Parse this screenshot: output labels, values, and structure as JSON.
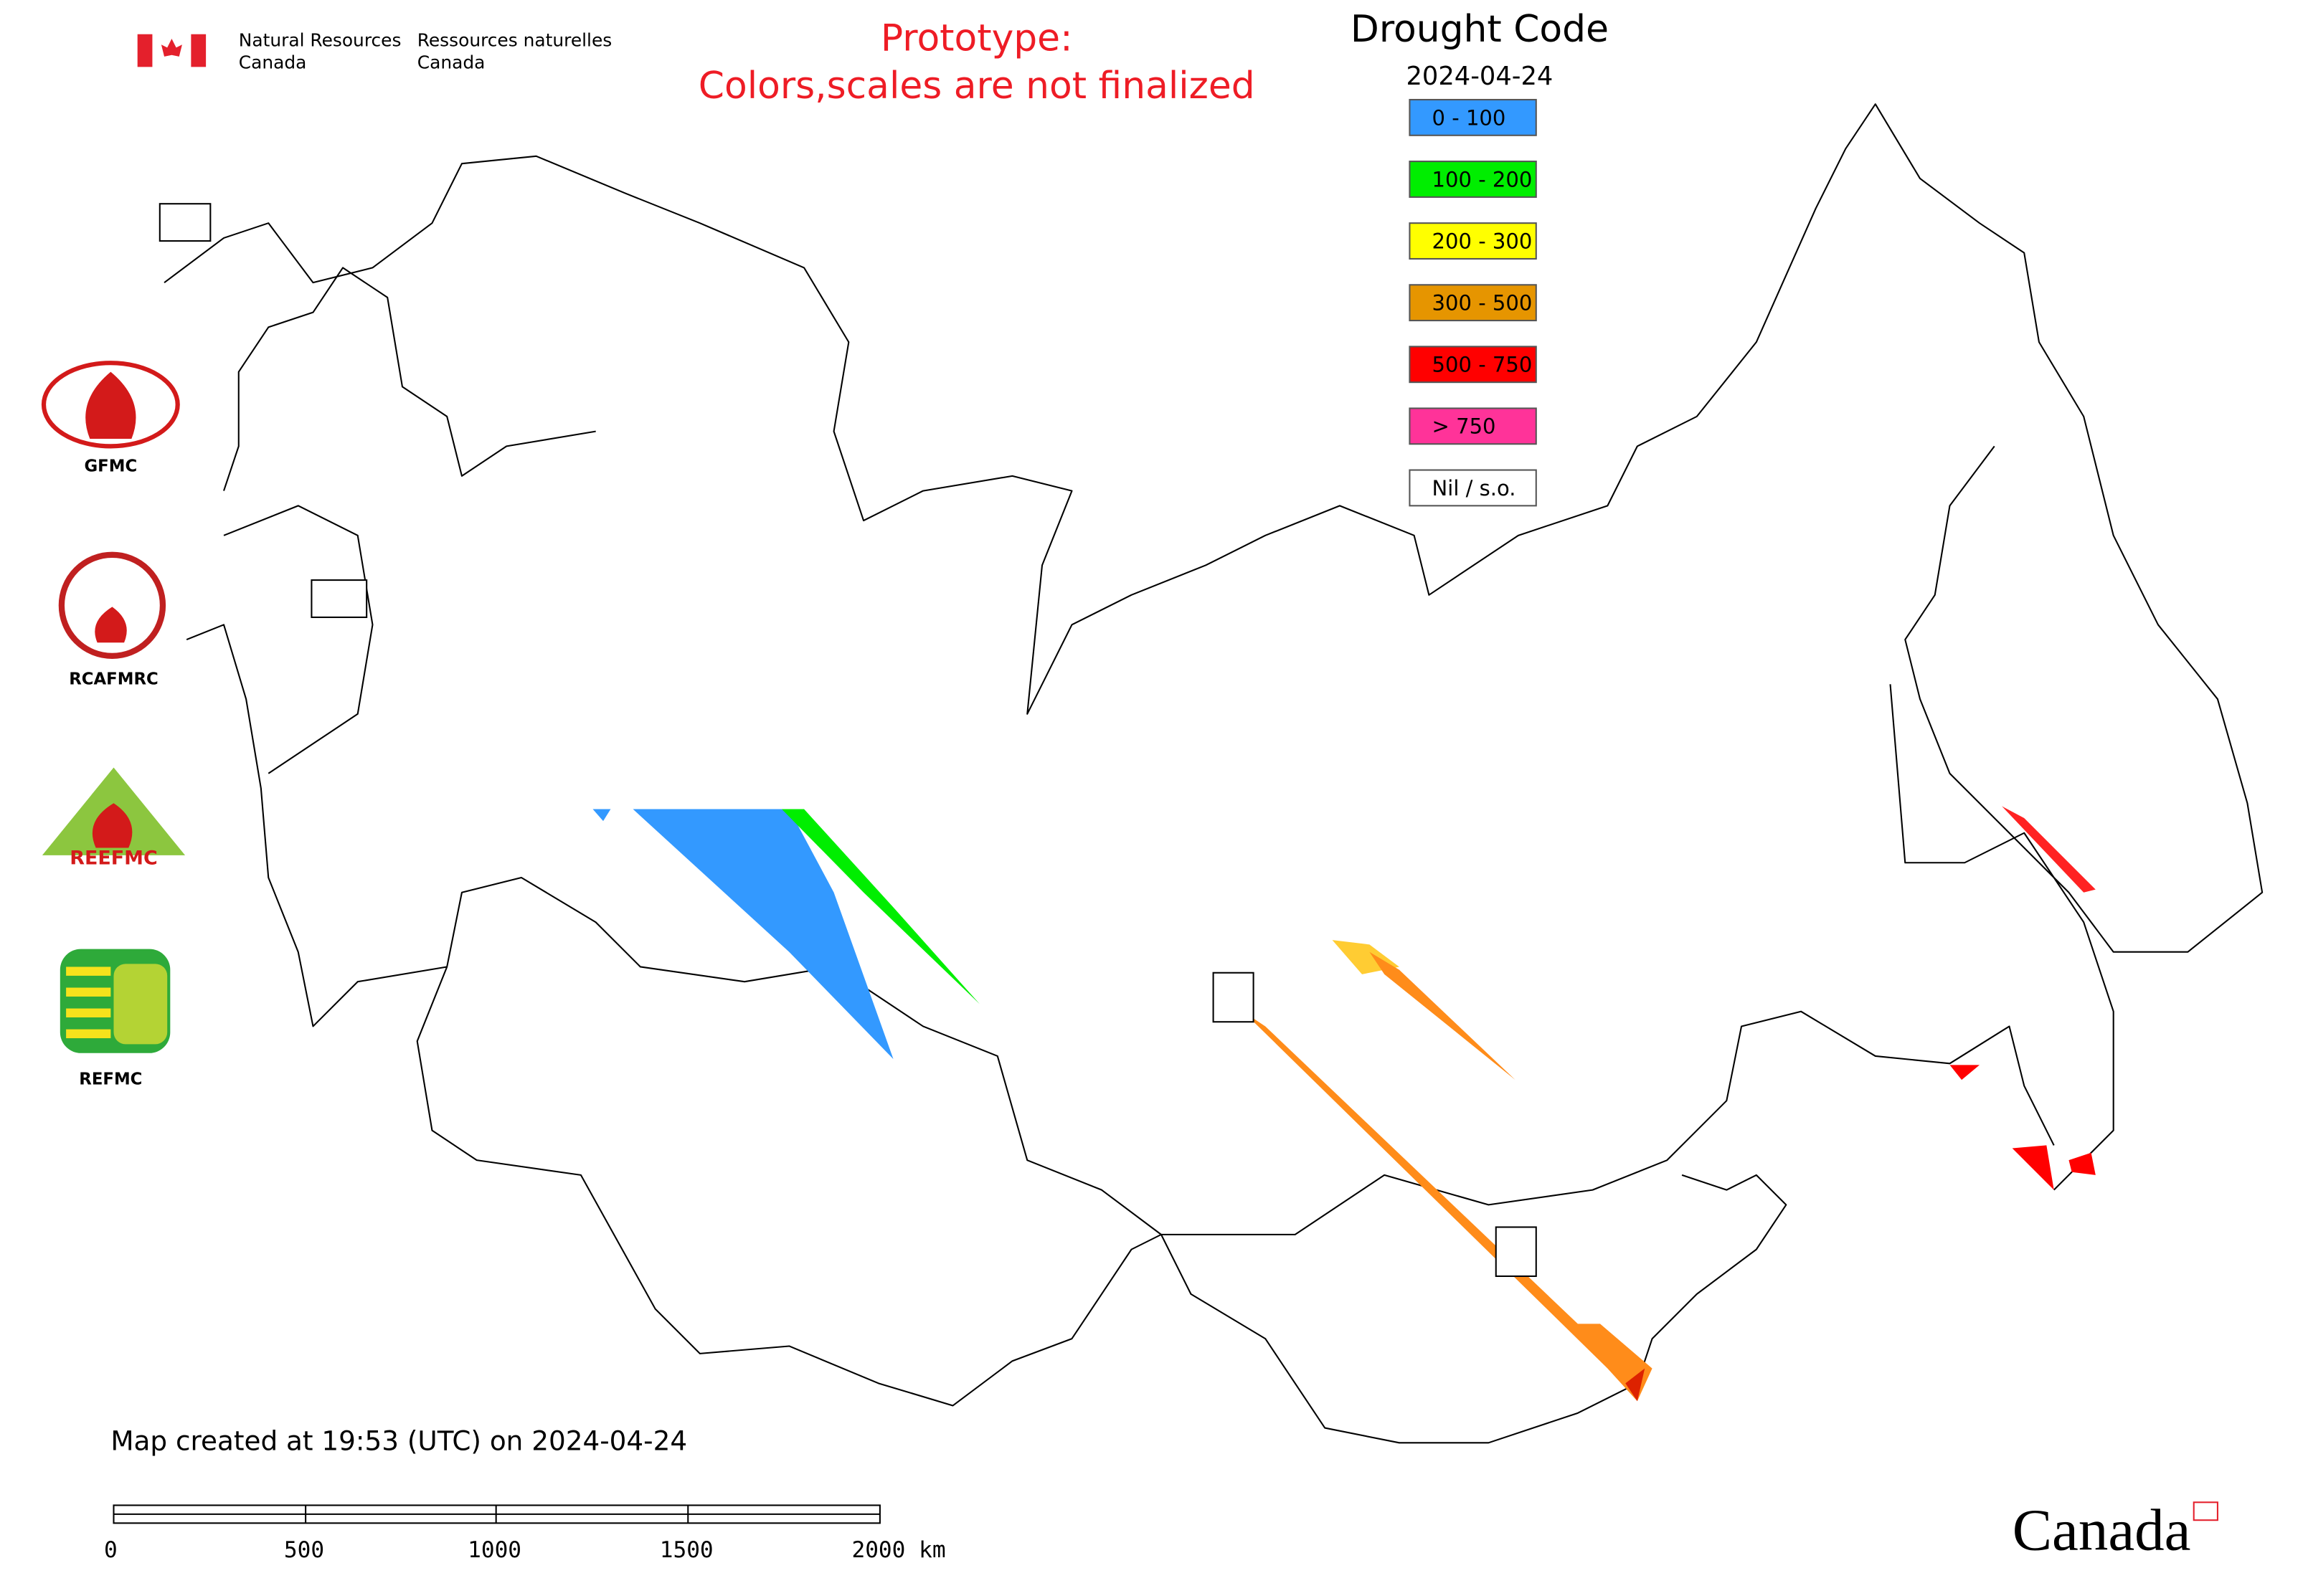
{
  "header": {
    "org_en": [
      "Natural Resources",
      "Canada"
    ],
    "org_fr": [
      "Ressources naturelles",
      "Canada"
    ],
    "notice": [
      "Prototype:",
      "Colors,scales are not finalized"
    ]
  },
  "legend": {
    "title": "Drought Code",
    "date": "2024-04-24",
    "items": [
      {
        "label": "0 - 100",
        "color": "#3399ff"
      },
      {
        "label": "100 - 200",
        "color": "#00ee00"
      },
      {
        "label": "200 - 300",
        "color": "#ffff00"
      },
      {
        "label": "300 - 500",
        "color": "#e69500"
      },
      {
        "label": "500 - 750",
        "color": "#ff0000"
      },
      {
        "label": "> 750",
        "color": "#ff3399"
      },
      {
        "label": "Nil / s.o.",
        "color": "#ffffff"
      }
    ]
  },
  "logos": [
    "GFMC",
    "RCAFMRC",
    "REEFMC",
    "REFMC"
  ],
  "footer": {
    "created": "Map created at 19:53 (UTC) on 2024-04-24",
    "wordmark": "Canada",
    "scale_labels": [
      "0",
      "500",
      "1000",
      "1500",
      "2000 km"
    ]
  }
}
